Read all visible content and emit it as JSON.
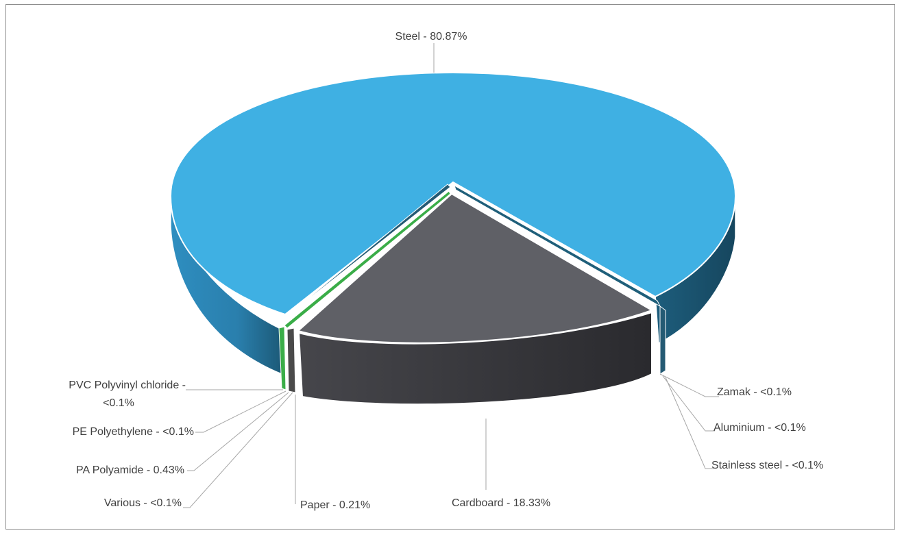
{
  "chart_data": {
    "type": "pie",
    "variant": "3d-exploded",
    "title": "",
    "slices": [
      {
        "name": "Steel",
        "display_value": "80.87%",
        "value": 80.87,
        "color": "#3fb0e3"
      },
      {
        "name": "Zamak",
        "display_value": "<0.1%",
        "value": 0.05,
        "color": "#1f5f7a"
      },
      {
        "name": "Aluminium",
        "display_value": "<0.1%",
        "value": 0.05,
        "color": "#ffffff"
      },
      {
        "name": "Stainless steel",
        "display_value": "<0.1%",
        "value": 0.05,
        "color": "#245a73"
      },
      {
        "name": "Cardboard",
        "display_value": "18.33%",
        "value": 18.33,
        "color": "#5f6066"
      },
      {
        "name": "Paper",
        "display_value": "0.21%",
        "value": 0.21,
        "color": "#4a4a4a"
      },
      {
        "name": "Various",
        "display_value": "<0.1%",
        "value": 0.05,
        "color": "#ffffff"
      },
      {
        "name": "PA Polyamide",
        "display_value": "0.43%",
        "value": 0.43,
        "color": "#3aad48"
      },
      {
        "name": "PE Polyethylene",
        "display_value": "<0.1%",
        "value": 0.05,
        "color": "#ffffff"
      },
      {
        "name": "PVC Polyvinyl chloride",
        "display_value": "<0.1%",
        "value": 0.05,
        "color": "#245a73"
      }
    ],
    "labels": {
      "steel": "Steel - 80.87%",
      "zamak": "Zamak - <0.1%",
      "aluminium": "Aluminium - <0.1%",
      "stainless": "Stainless steel - <0.1%",
      "cardboard": "Cardboard - 18.33%",
      "paper": "Paper - 0.21%",
      "various": "Various - <0.1%",
      "pa": "PA Polyamide - 0.43%",
      "pe": "PE Polyethylene - <0.1%",
      "pvc_line1": "PVC Polyvinyl chloride -",
      "pvc_line2": "<0.1%"
    },
    "legend": "none"
  }
}
